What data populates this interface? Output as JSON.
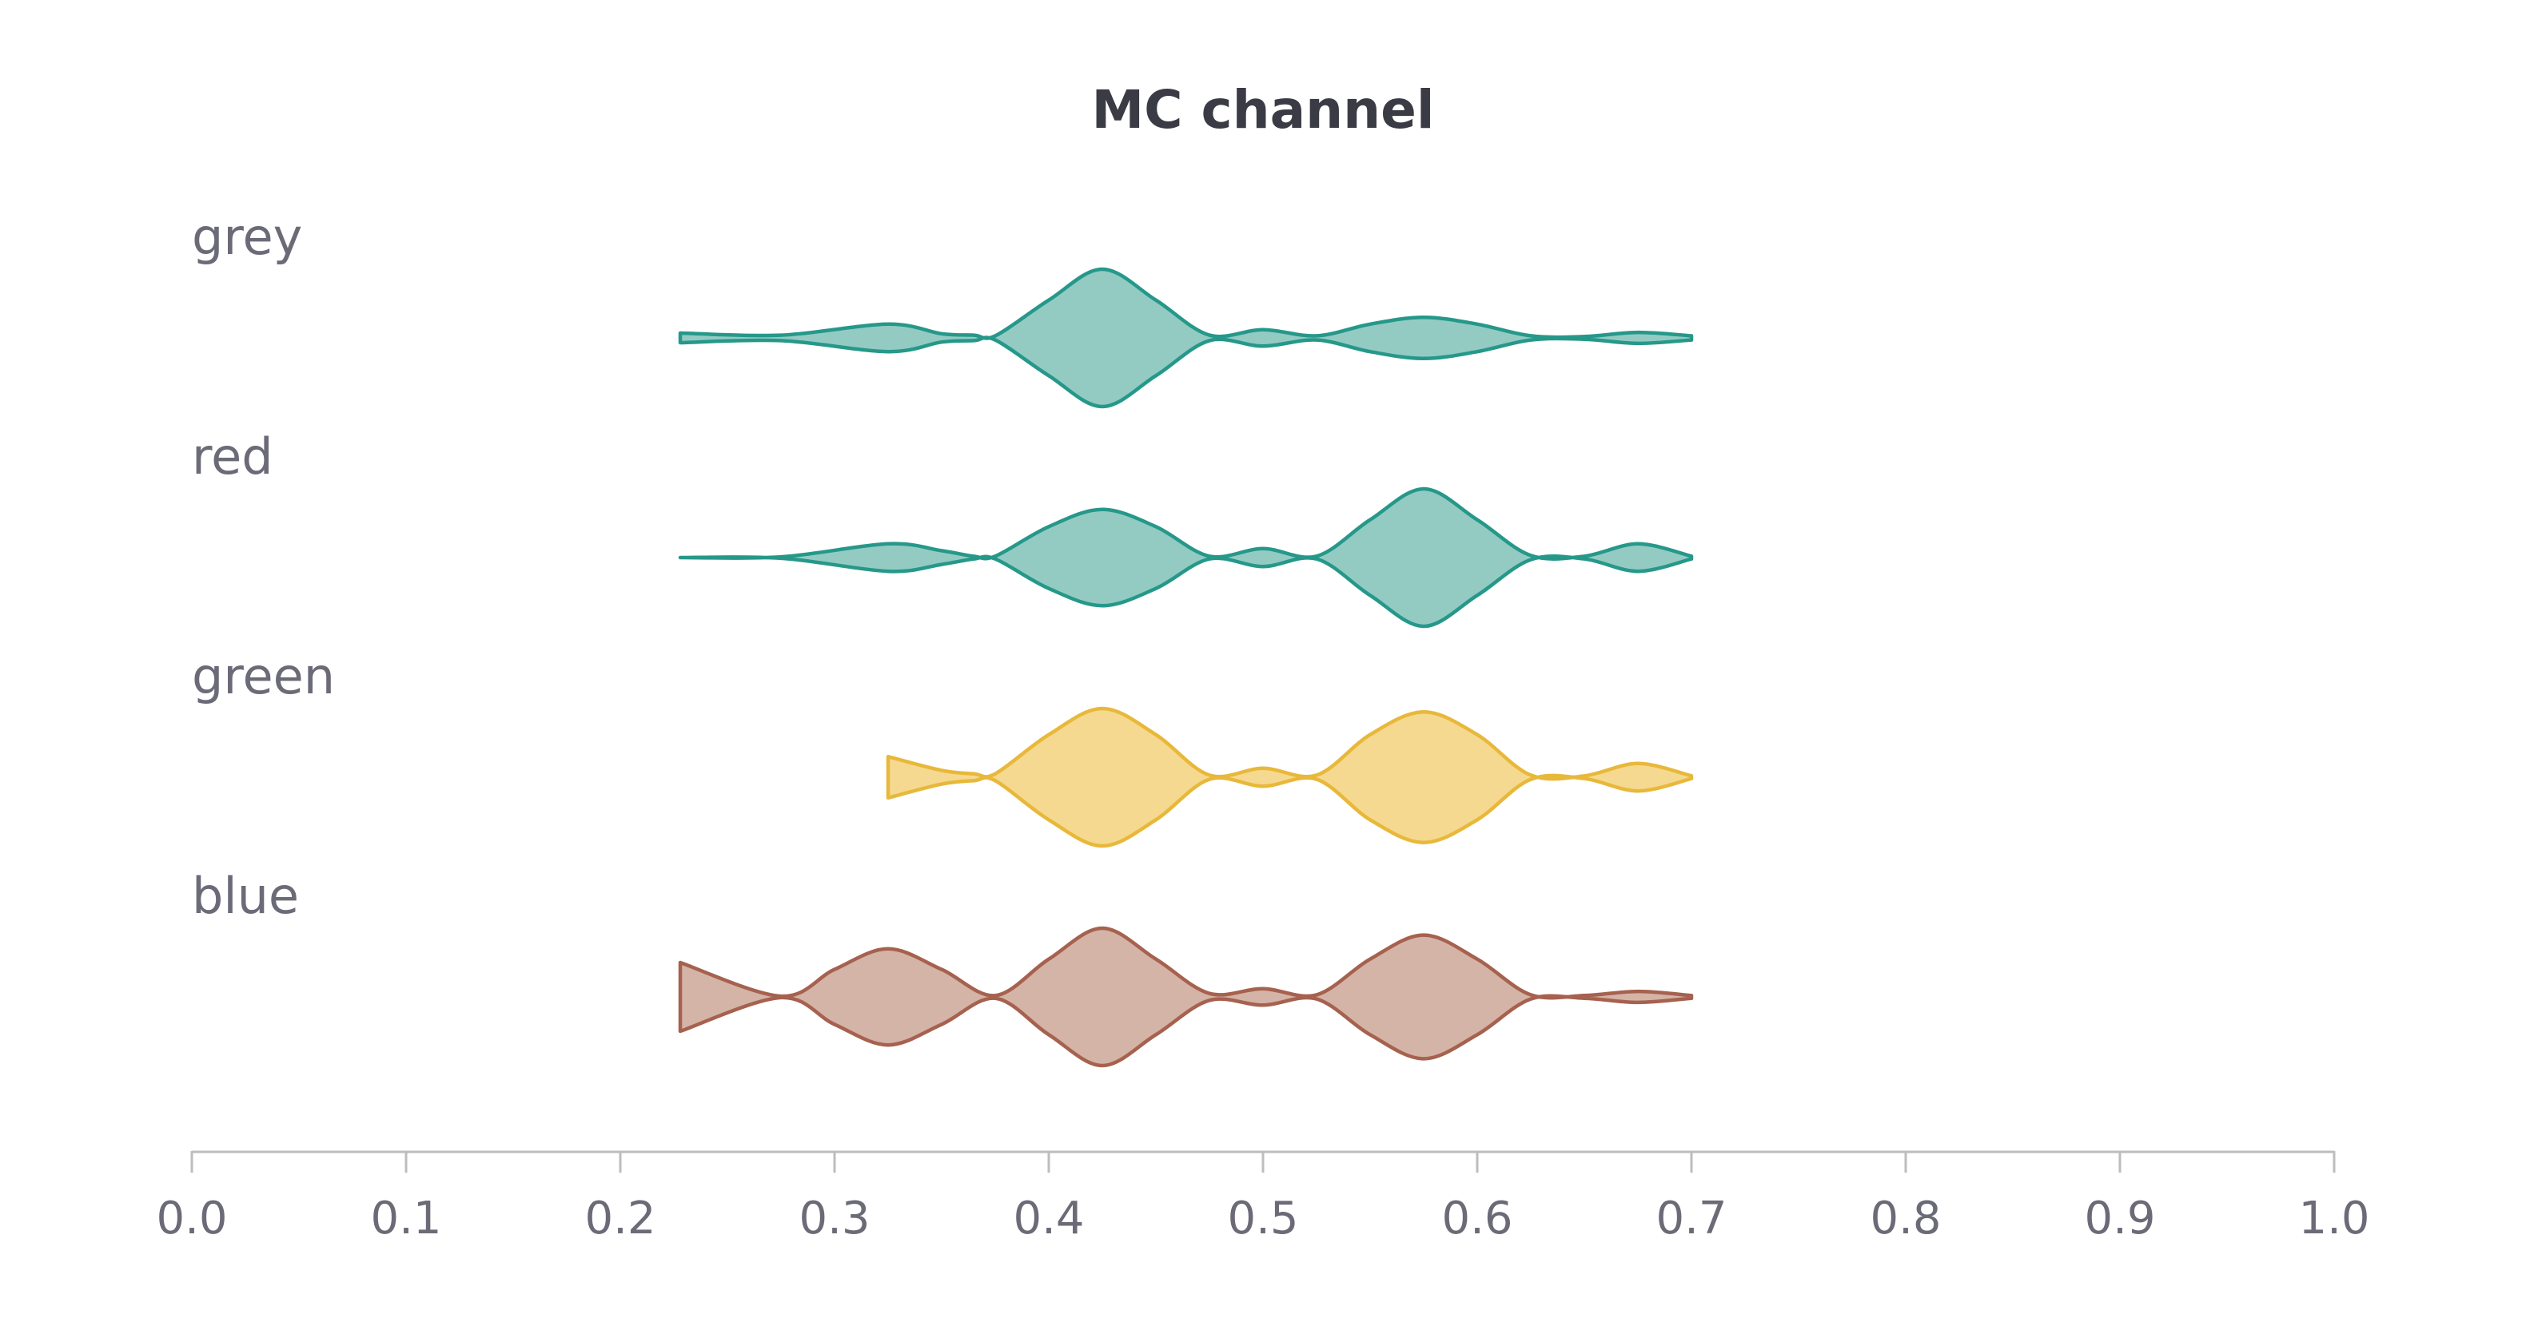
{
  "chart_data": {
    "type": "violin",
    "title": "MC channel",
    "xlabel": "",
    "ylabel": "",
    "xlim": [
      0.0,
      1.0
    ],
    "x_ticks": [
      "0.0",
      "0.1",
      "0.2",
      "0.3",
      "0.4",
      "0.5",
      "0.6",
      "0.7",
      "0.8",
      "0.9",
      "1.0"
    ],
    "grid": false,
    "legend": "none",
    "density_scale": "relative half-width (0-1)",
    "series": [
      {
        "name": "grey",
        "color": "#26988a",
        "fill": "#93cbc3",
        "x": [
          0.228,
          0.275,
          0.325,
          0.35,
          0.365,
          0.375,
          0.4,
          0.425,
          0.45,
          0.475,
          0.5,
          0.525,
          0.55,
          0.575,
          0.6,
          0.625,
          0.65,
          0.675,
          0.7
        ],
        "density": [
          0.07,
          0.04,
          0.2,
          0.06,
          0.04,
          0.03,
          0.55,
          1.0,
          0.55,
          0.04,
          0.12,
          0.03,
          0.2,
          0.3,
          0.2,
          0.03,
          0.02,
          0.08,
          0.03
        ]
      },
      {
        "name": "red",
        "color": "#26988a",
        "fill": "#93cbc3",
        "x": [
          0.228,
          0.275,
          0.325,
          0.35,
          0.365,
          0.375,
          0.4,
          0.425,
          0.45,
          0.475,
          0.5,
          0.525,
          0.55,
          0.575,
          0.6,
          0.625,
          0.65,
          0.675,
          0.7
        ],
        "density": [
          0.0,
          0.01,
          0.2,
          0.1,
          0.02,
          0.02,
          0.45,
          0.7,
          0.45,
          0.02,
          0.13,
          0.02,
          0.55,
          1.0,
          0.55,
          0.03,
          0.02,
          0.2,
          0.02
        ]
      },
      {
        "name": "green",
        "color": "#e8b83a",
        "fill": "#f5d990",
        "x": [
          0.325,
          0.35,
          0.365,
          0.375,
          0.4,
          0.425,
          0.45,
          0.475,
          0.5,
          0.525,
          0.55,
          0.575,
          0.6,
          0.625,
          0.65,
          0.675,
          0.7
        ],
        "density": [
          0.3,
          0.1,
          0.05,
          0.05,
          0.62,
          1.0,
          0.62,
          0.03,
          0.13,
          0.03,
          0.62,
          0.95,
          0.62,
          0.03,
          0.02,
          0.2,
          0.02
        ]
      },
      {
        "name": "blue",
        "color": "#a6614f",
        "fill": "#d4b4a7",
        "x": [
          0.228,
          0.275,
          0.3,
          0.325,
          0.35,
          0.375,
          0.4,
          0.425,
          0.45,
          0.475,
          0.5,
          0.525,
          0.55,
          0.575,
          0.6,
          0.625,
          0.65,
          0.675,
          0.7
        ],
        "density": [
          0.5,
          0.01,
          0.4,
          0.7,
          0.4,
          0.02,
          0.55,
          1.0,
          0.55,
          0.05,
          0.12,
          0.03,
          0.55,
          0.9,
          0.55,
          0.03,
          0.02,
          0.08,
          0.02
        ]
      }
    ]
  }
}
